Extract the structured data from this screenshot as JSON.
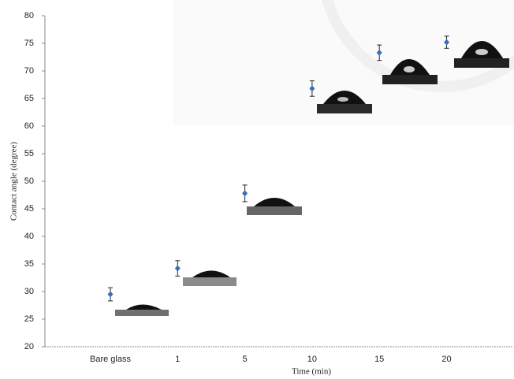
{
  "chart_data": {
    "type": "scatter",
    "x_label": "Time (min)",
    "y_label": "Contact angle (degree)",
    "categories": [
      "Bare glass",
      "1",
      "5",
      "10",
      "15",
      "20"
    ],
    "values": [
      29.5,
      34.2,
      47.8,
      66.8,
      73.3,
      75.2
    ],
    "errors": [
      1.2,
      1.4,
      1.5,
      1.4,
      1.4,
      1.1
    ],
    "color": "#3a6fb5",
    "ylim": [
      20,
      80
    ],
    "yticks": [
      20,
      25,
      30,
      35,
      40,
      45,
      50,
      55,
      60,
      65,
      70,
      75,
      80
    ]
  }
}
